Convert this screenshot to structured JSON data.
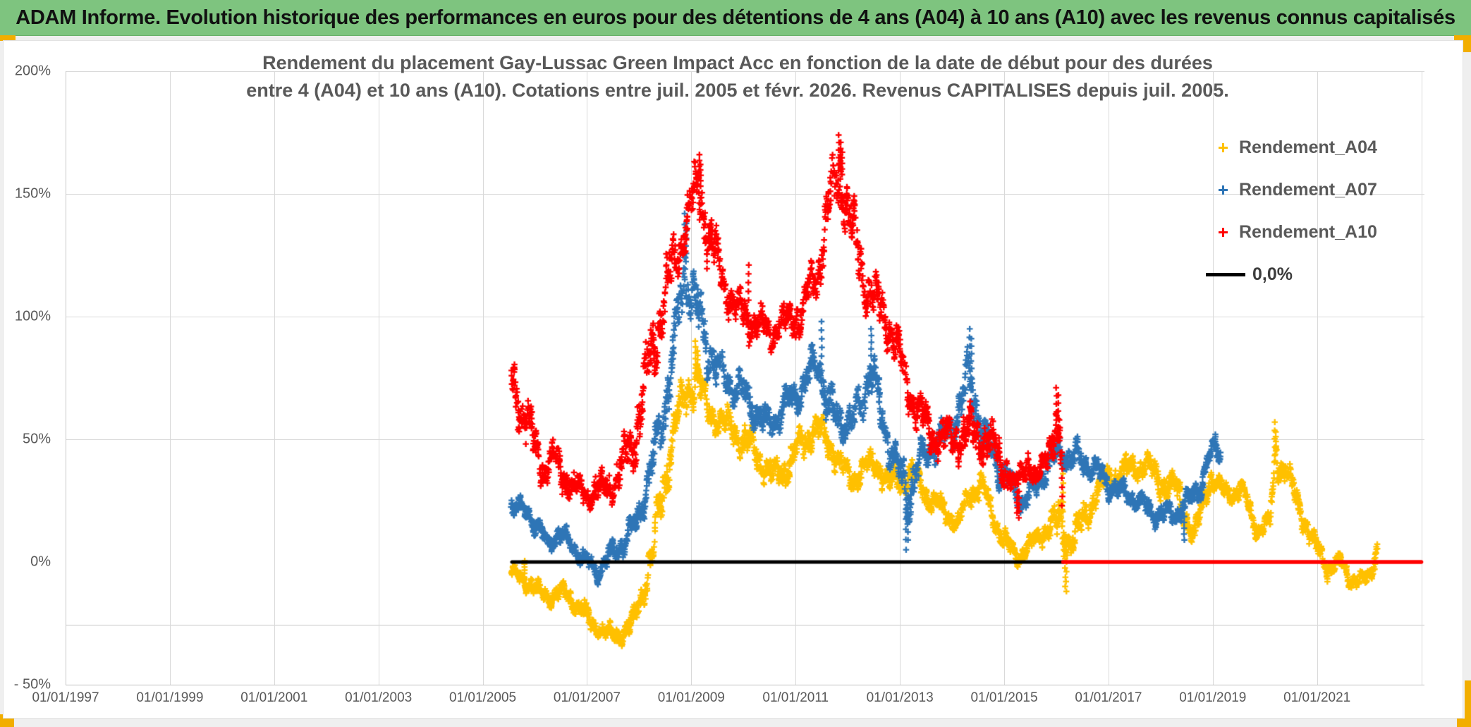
{
  "header": {
    "title": "ADAM Informe. Evolution historique des performances en euros pour des détentions de 4 ans (A04) à 10 ans (A10) avec les revenus connus capitalisés",
    "bg_color": "#7ec47f"
  },
  "chart": {
    "title_line1": "Rendement du placement Gay-Lussac Green Impact Acc en fonction de la date de début pour des durées",
    "title_line2": "entre 4 (A04) et 10 ans (A10). Cotations entre juil. 2005 et févr. 2026. Revenus CAPITALISES depuis juil. 2005.",
    "legend": [
      {
        "label": "Rendement_A04",
        "color": "#FFC000",
        "marker": "plus"
      },
      {
        "label": "Rendement_A07",
        "color": "#2E75B6",
        "marker": "plus"
      },
      {
        "label": "Rendement_A10",
        "color": "#FF0000",
        "marker": "plus"
      },
      {
        "label": "0,0%",
        "color": "#000000",
        "marker": "line"
      }
    ],
    "x_axis": {
      "ticks": [
        {
          "label": "01/01/1997",
          "year": 1997
        },
        {
          "label": "01/01/1999",
          "year": 1999
        },
        {
          "label": "01/01/2001",
          "year": 2001
        },
        {
          "label": "01/01/2003",
          "year": 2003
        },
        {
          "label": "01/01/2005",
          "year": 2005
        },
        {
          "label": "01/01/2007",
          "year": 2007
        },
        {
          "label": "01/01/2009",
          "year": 2009
        },
        {
          "label": "01/01/2011",
          "year": 2011
        },
        {
          "label": "01/01/2013",
          "year": 2013
        },
        {
          "label": "01/01/2015",
          "year": 2015
        },
        {
          "label": "01/01/2017",
          "year": 2017
        },
        {
          "label": "01/01/2019",
          "year": 2019
        },
        {
          "label": "01/01/2021",
          "year": 2021
        }
      ],
      "gridline_years": [
        1999,
        2001,
        2003,
        2005,
        2007,
        2009,
        2011,
        2013,
        2015,
        2017,
        2019,
        2021,
        2023
      ],
      "range": [
        1997,
        2023.06
      ]
    },
    "y_axis": {
      "ticks": [
        {
          "label": "200%",
          "value": 200
        },
        {
          "label": "150%",
          "value": 150
        },
        {
          "label": "100%",
          "value": 100
        },
        {
          "label": "50%",
          "value": 50
        },
        {
          "label": "0%",
          "value": 0
        },
        {
          "label": "- 50%",
          "value": -50
        }
      ],
      "gridline_values": [
        200,
        150,
        100,
        50
      ],
      "minor_line_values": [
        -25.6
      ],
      "range": [
        -50,
        200
      ],
      "gridline_color": "#d9d9d9"
    }
  },
  "chart_data": {
    "type": "scatter",
    "x_unit": "decimal_year_of_start_date",
    "y_unit": "percent_return",
    "marker": "plus",
    "envelope_columns": [
      "year",
      "center_pct",
      "half_spread_pct"
    ],
    "series": [
      {
        "name": "Rendement_A04",
        "color": "#FFC000",
        "keyframes": [
          [
            2005.55,
            -4,
            3
          ],
          [
            2005.8,
            -7,
            4
          ],
          [
            2006.05,
            -12,
            4
          ],
          [
            2006.3,
            -14,
            4
          ],
          [
            2006.55,
            -12,
            4
          ],
          [
            2006.8,
            -17,
            5
          ],
          [
            2007.05,
            -24,
            5
          ],
          [
            2007.35,
            -29,
            4
          ],
          [
            2007.6,
            -30,
            4
          ],
          [
            2007.85,
            -26,
            5
          ],
          [
            2008.05,
            -14,
            6
          ],
          [
            2008.25,
            3,
            9
          ],
          [
            2008.45,
            28,
            12
          ],
          [
            2008.7,
            57,
            9
          ],
          [
            2008.95,
            70,
            10
          ],
          [
            2009.1,
            77,
            10
          ],
          [
            2009.3,
            62,
            7
          ],
          [
            2009.6,
            57,
            7
          ],
          [
            2009.9,
            52,
            7
          ],
          [
            2010.2,
            45,
            8
          ],
          [
            2010.55,
            35,
            7
          ],
          [
            2010.8,
            38,
            7
          ],
          [
            2011.1,
            47,
            8
          ],
          [
            2011.35,
            55,
            7
          ],
          [
            2011.6,
            50,
            7
          ],
          [
            2011.85,
            40,
            6
          ],
          [
            2012.05,
            33,
            6
          ],
          [
            2012.3,
            38,
            6
          ],
          [
            2012.55,
            40,
            6
          ],
          [
            2012.8,
            32,
            6
          ],
          [
            2013.05,
            34,
            6
          ],
          [
            2013.25,
            36,
            6
          ],
          [
            2013.6,
            25,
            5
          ],
          [
            2013.9,
            20,
            5
          ],
          [
            2014.1,
            15,
            4
          ],
          [
            2014.35,
            28,
            6
          ],
          [
            2014.55,
            32,
            6
          ],
          [
            2014.8,
            18,
            5
          ],
          [
            2015.05,
            7,
            5
          ],
          [
            2015.25,
            2,
            4
          ],
          [
            2015.45,
            6,
            5
          ],
          [
            2015.65,
            10,
            5
          ],
          [
            2015.9,
            16,
            6
          ],
          [
            2016.1,
            14,
            13
          ],
          [
            2016.3,
            9,
            7
          ],
          [
            2016.55,
            18,
            7
          ],
          [
            2016.8,
            30,
            6
          ],
          [
            2017.05,
            35,
            6
          ],
          [
            2017.3,
            37,
            6
          ],
          [
            2017.7,
            40,
            6
          ],
          [
            2018.0,
            33,
            7
          ],
          [
            2018.3,
            30,
            7
          ],
          [
            2018.65,
            10,
            6
          ],
          [
            2018.95,
            35,
            5
          ],
          [
            2019.2,
            28,
            5
          ],
          [
            2019.55,
            30,
            5
          ],
          [
            2019.85,
            13,
            4
          ],
          [
            2020.1,
            16,
            5
          ],
          [
            2020.22,
            44,
            10
          ],
          [
            2020.4,
            38,
            7
          ],
          [
            2020.55,
            28,
            6
          ],
          [
            2020.75,
            18,
            6
          ],
          [
            2020.95,
            7,
            5
          ],
          [
            2021.15,
            0,
            5
          ],
          [
            2021.3,
            -3,
            4
          ],
          [
            2021.45,
            1,
            4
          ],
          [
            2021.65,
            -7,
            4
          ],
          [
            2021.9,
            -8,
            4
          ],
          [
            2022.05,
            -4,
            4
          ],
          [
            2022.15,
            7,
            4
          ]
        ],
        "spikes": [
          [
            2009.08,
            90
          ],
          [
            2009.12,
            86
          ],
          [
            2016.13,
            36
          ],
          [
            2016.17,
            -10
          ],
          [
            2016.19,
            -12
          ],
          [
            2020.19,
            57
          ],
          [
            2020.21,
            53
          ],
          [
            2005.8,
            0.5
          ],
          [
            2021.2,
            -8
          ]
        ]
      },
      {
        "name": "Rendement_A07",
        "color": "#2E75B6",
        "keyframes": [
          [
            2005.55,
            24,
            5
          ],
          [
            2005.9,
            19,
            4
          ],
          [
            2006.1,
            13,
            5
          ],
          [
            2006.25,
            7,
            4
          ],
          [
            2006.45,
            12,
            5
          ],
          [
            2006.7,
            7,
            4
          ],
          [
            2006.95,
            1,
            4
          ],
          [
            2007.2,
            -4,
            4
          ],
          [
            2007.45,
            3,
            5
          ],
          [
            2007.7,
            8,
            6
          ],
          [
            2007.95,
            16,
            6
          ],
          [
            2008.2,
            35,
            10
          ],
          [
            2008.45,
            58,
            12
          ],
          [
            2008.7,
            92,
            15
          ],
          [
            2008.9,
            120,
            15
          ],
          [
            2009.05,
            107,
            14
          ],
          [
            2009.3,
            88,
            12
          ],
          [
            2009.6,
            75,
            9
          ],
          [
            2010.0,
            69,
            8
          ],
          [
            2010.45,
            55,
            7
          ],
          [
            2010.8,
            64,
            8
          ],
          [
            2011.1,
            70,
            8
          ],
          [
            2011.45,
            83,
            9
          ],
          [
            2011.65,
            60,
            12
          ],
          [
            2011.9,
            58,
            8
          ],
          [
            2012.1,
            56,
            8
          ],
          [
            2012.45,
            79,
            12
          ],
          [
            2012.7,
            55,
            8
          ],
          [
            2012.95,
            38,
            9
          ],
          [
            2013.15,
            28,
            14
          ],
          [
            2013.4,
            42,
            7
          ],
          [
            2013.7,
            48,
            7
          ],
          [
            2014.0,
            55,
            8
          ],
          [
            2014.35,
            75,
            13
          ],
          [
            2014.6,
            52,
            8
          ],
          [
            2014.9,
            38,
            7
          ],
          [
            2015.1,
            33,
            6
          ],
          [
            2015.35,
            24,
            5
          ],
          [
            2015.6,
            30,
            6
          ],
          [
            2015.85,
            40,
            6
          ],
          [
            2016.1,
            45,
            7
          ],
          [
            2016.35,
            42,
            7
          ],
          [
            2016.6,
            40,
            6
          ],
          [
            2016.9,
            34,
            6
          ],
          [
            2017.2,
            29,
            5
          ],
          [
            2017.5,
            26,
            5
          ],
          [
            2017.8,
            21,
            5
          ],
          [
            2018.05,
            19,
            5
          ],
          [
            2018.3,
            20,
            5
          ],
          [
            2018.55,
            25,
            6
          ],
          [
            2018.8,
            33,
            6
          ],
          [
            2019.0,
            47,
            4
          ],
          [
            2019.15,
            45,
            4
          ]
        ],
        "spikes": [
          [
            2008.87,
            142
          ],
          [
            2008.9,
            138
          ],
          [
            2011.5,
            98
          ],
          [
            2012.45,
            95
          ],
          [
            2013.12,
            5
          ],
          [
            2013.15,
            9
          ],
          [
            2014.34,
            95
          ],
          [
            2014.37,
            91
          ],
          [
            2018.45,
            9
          ],
          [
            2019.05,
            52
          ]
        ]
      },
      {
        "name": "Rendement_A10",
        "color": "#FF0000",
        "keyframes": [
          [
            2005.55,
            75,
            14
          ],
          [
            2005.75,
            62,
            10
          ],
          [
            2005.95,
            50,
            12
          ],
          [
            2006.15,
            38,
            8
          ],
          [
            2006.4,
            40,
            10
          ],
          [
            2006.7,
            31,
            6
          ],
          [
            2007.0,
            28,
            6
          ],
          [
            2007.3,
            30,
            7
          ],
          [
            2007.6,
            35,
            9
          ],
          [
            2007.9,
            50,
            12
          ],
          [
            2008.2,
            80,
            17
          ],
          [
            2008.5,
            110,
            15
          ],
          [
            2008.8,
            130,
            10
          ],
          [
            2009.0,
            145,
            12
          ],
          [
            2009.15,
            152,
            13
          ],
          [
            2009.35,
            132,
            14
          ],
          [
            2009.6,
            115,
            10
          ],
          [
            2009.85,
            104,
            8
          ],
          [
            2010.1,
            100,
            10
          ],
          [
            2010.45,
            94,
            8
          ],
          [
            2010.8,
            97,
            8
          ],
          [
            2011.1,
            101,
            9
          ],
          [
            2011.4,
            116,
            10
          ],
          [
            2011.65,
            147,
            15
          ],
          [
            2011.85,
            157,
            14
          ],
          [
            2012.05,
            140,
            12
          ],
          [
            2012.3,
            116,
            12
          ],
          [
            2012.6,
            104,
            10
          ],
          [
            2012.9,
            91,
            10
          ],
          [
            2013.2,
            68,
            9
          ],
          [
            2013.6,
            52,
            9
          ],
          [
            2014.0,
            50,
            9
          ],
          [
            2014.4,
            52,
            11
          ],
          [
            2014.8,
            47,
            9
          ],
          [
            2015.05,
            38,
            9
          ],
          [
            2015.2,
            30,
            5
          ],
          [
            2015.45,
            42,
            7
          ],
          [
            2015.62,
            32,
            4
          ],
          [
            2015.78,
            42,
            6
          ],
          [
            2015.95,
            55,
            13
          ],
          [
            2016.1,
            45,
            14
          ]
        ],
        "spikes": [
          [
            2009.15,
            166
          ],
          [
            2009.18,
            162
          ],
          [
            2011.83,
            174
          ],
          [
            2011.86,
            171
          ],
          [
            2011.89,
            167
          ],
          [
            2010.1,
            121
          ],
          [
            2015.25,
            20
          ],
          [
            2015.28,
            18
          ],
          [
            2016.0,
            71
          ],
          [
            2016.04,
            68
          ],
          [
            2016.11,
            23
          ]
        ]
      }
    ],
    "zero_lines": [
      {
        "name": "0,0% reference (black)",
        "color": "#000000",
        "y": 0,
        "x_start": 2005.56,
        "x_end": 2016.13,
        "width": 5
      },
      {
        "name": "A10 zero segment (red)",
        "color": "#FF0000",
        "y": 0,
        "x_start": 2016.13,
        "x_end": 2023.0,
        "width": 5.5
      }
    ]
  },
  "decor": {
    "accent_color": "#f2ae00",
    "sheet_color": "#efefef"
  }
}
